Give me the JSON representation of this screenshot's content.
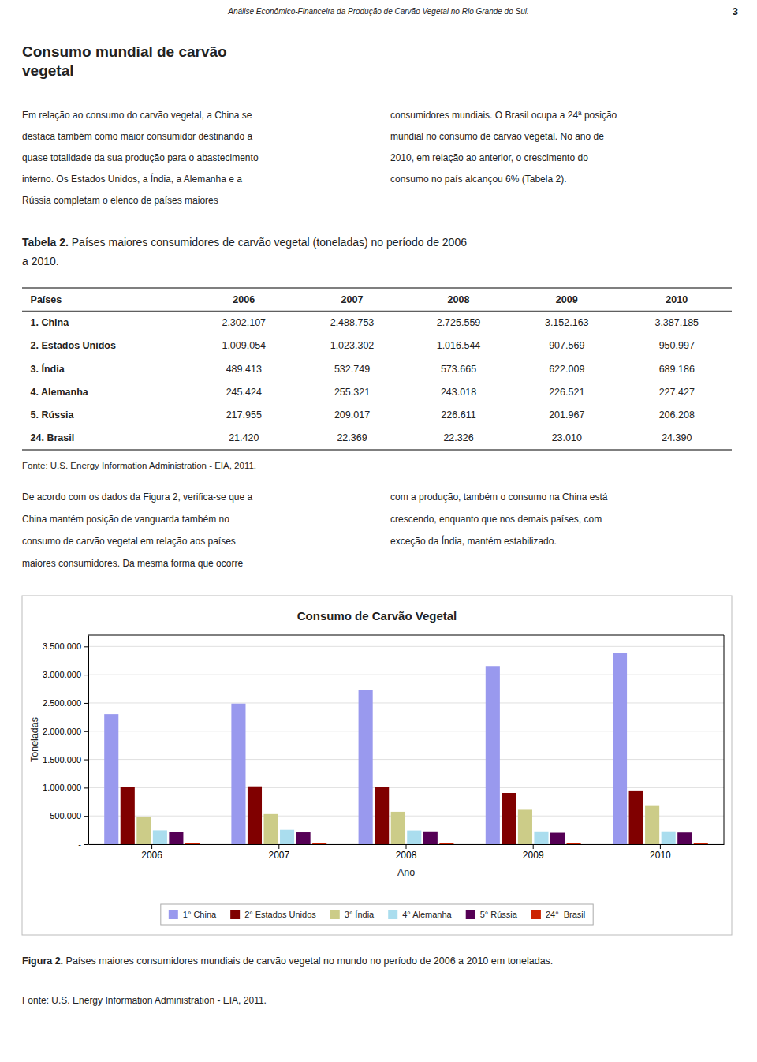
{
  "header": "Análise Econômico-Financeira da Produção de Carvão Vegetal no Rio Grande do Sul.",
  "page_number": "3",
  "section_title": [
    "Consumo mundial de carvão",
    "vegetal"
  ],
  "text_before_table": {
    "left": [
      "Em relação ao consumo do carvão vegetal, a China se",
      "destaca também como maior consumidor destinando a",
      "quase totalidade da sua produção para o abastecimento",
      "interno. Os Estados Unidos, a Índia, a Alemanha e a",
      "Rússia completam o elenco de países maiores"
    ],
    "right": [
      "consumidores mundiais. O Brasil ocupa a 24ª posição",
      "mundial no consumo de carvão vegetal. No ano de",
      "2010, em relação ao anterior, o crescimento do",
      "consumo no país alcançou 6% (Tabela 2)."
    ]
  },
  "table": {
    "title_bold": "Tabela 2.",
    "title_rest": " Países maiores consumidores de carvão vegetal (toneladas) no período de 2006",
    "title_line2": "a 2010.",
    "headers": [
      "Países",
      "2006",
      "2007",
      "2008",
      "2009",
      "2010"
    ],
    "rows": [
      [
        "1. China",
        "2.302.107",
        "2.488.753",
        "2.725.559",
        "3.152.163",
        "3.387.185"
      ],
      [
        "2. Estados Unidos",
        "1.009.054",
        "1.023.302",
        "1.016.544",
        "907.569",
        "950.997"
      ],
      [
        "3. Índia",
        "489.413",
        "532.749",
        "573.665",
        "622.009",
        "689.186"
      ],
      [
        "4. Alemanha",
        "245.424",
        "255.321",
        "243.018",
        "226.521",
        "227.427"
      ],
      [
        "5. Rússia",
        "217.955",
        "209.017",
        "226.611",
        "201.967",
        "206.208"
      ],
      [
        "24. Brasil",
        "21.420",
        "22.369",
        "22.326",
        "23.010",
        "24.390"
      ]
    ],
    "source": "Fonte: U.S. Energy Information Administration - EIA, 2011."
  },
  "text_after_table": {
    "left": [
      "De acordo com os dados da Figura 2, verifica-se que a",
      "China mantém posição de vanguarda também no",
      "consumo de carvão vegetal em relação aos países",
      "maiores consumidores. Da mesma forma que ocorre"
    ],
    "right": [
      "com a produção, também o consumo na China está",
      "crescendo, enquanto que nos demais países, com",
      "exceção da Índia, mantém estabilizado."
    ]
  },
  "chart_data": {
    "type": "bar",
    "title": "Consumo de Carvão Vegetal",
    "x_label": "Ano",
    "y_label": "Toneladas",
    "categories": [
      "2006",
      "2007",
      "2008",
      "2009",
      "2010"
    ],
    "series": [
      {
        "name": "1° China",
        "color": "#9999EE",
        "values": [
          2302107,
          2488753,
          2725559,
          3152163,
          3387185
        ]
      },
      {
        "name": "2° Estados Unidos",
        "color": "#800000",
        "values": [
          1009054,
          1023302,
          1016544,
          907569,
          950997
        ]
      },
      {
        "name": "3° Índia",
        "color": "#CCCC88",
        "values": [
          489413,
          532749,
          573665,
          622009,
          689186
        ]
      },
      {
        "name": "4° Alemanha",
        "color": "#AADDEE",
        "values": [
          245424,
          255321,
          243018,
          226521,
          227427
        ]
      },
      {
        "name": "5° Rússia",
        "color": "#550055",
        "values": [
          217955,
          209017,
          226611,
          201967,
          206208
        ]
      },
      {
        "name": "24°  Brasil",
        "color": "#CC2200",
        "values": [
          21420,
          22369,
          22326,
          23010,
          24390
        ]
      }
    ],
    "ylim": [
      0,
      3700000
    ],
    "yticks": [
      {
        "value": 0,
        "label": "-"
      },
      {
        "value": 500000,
        "label": "500.000"
      },
      {
        "value": 1000000,
        "label": "1.000.000"
      },
      {
        "value": 1500000,
        "label": "1.500.000"
      },
      {
        "value": 2000000,
        "label": "2.000.000"
      },
      {
        "value": 2500000,
        "label": "2.500.000"
      },
      {
        "value": 3000000,
        "label": "3.000.000"
      },
      {
        "value": 3500000,
        "label": "3.500.000"
      }
    ],
    "grid": true,
    "legend": "bottom"
  },
  "caption_bold": "Figura 2.",
  "caption_rest": " Países maiores consumidores mundiais de carvão vegetal no mundo no período de 2006 a 2010 em toneladas.",
  "figure_source": "Fonte: U.S. Energy Information Administration - EIA, 2011."
}
